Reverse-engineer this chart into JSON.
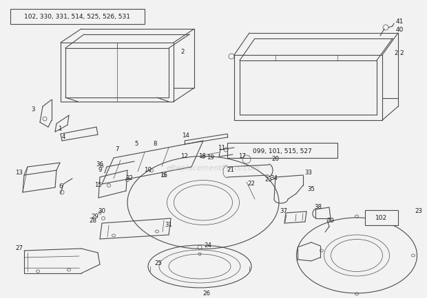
{
  "bg_color": "#f2f2f2",
  "line_color": "#4a4a4a",
  "label_color": "#1a1a1a",
  "box1_label": "102, 330, 331, 514, 525, 526, 531",
  "box2_label": "099, 101, 515, 527",
  "box3_label": "102",
  "watermark": "eReplacementParts.com",
  "figsize": [
    6.2,
    4.34
  ],
  "dpi": 100
}
